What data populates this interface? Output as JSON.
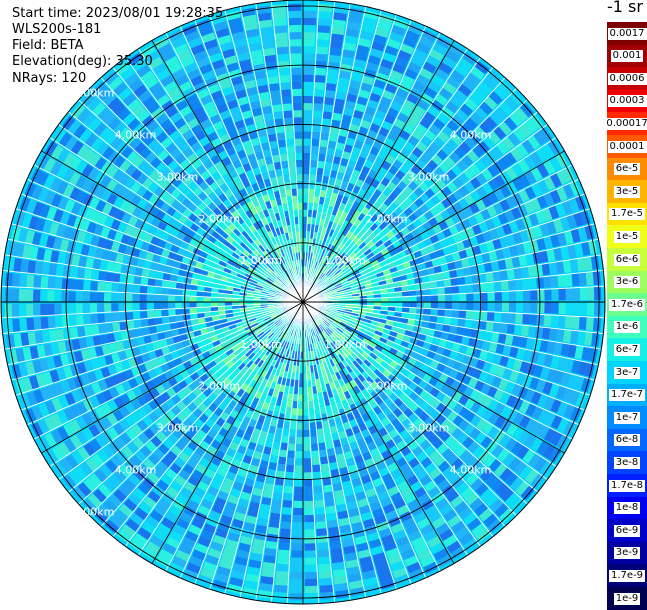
{
  "header": {
    "start_time": "Start time: 2023/08/01 19:28:35",
    "instrument": "WLS200s-181",
    "field": "Field: BETA",
    "elevation": "Elevation(deg): 35.30",
    "nrays": "NRays: 120"
  },
  "colorbar": {
    "unit": "-1 sr",
    "entries": [
      {
        "label": "0.0017",
        "color": "#7f0000"
      },
      {
        "label": "0.001",
        "color": "#a10000"
      },
      {
        "label": "0.0006",
        "color": "#c80000"
      },
      {
        "label": "0.0003",
        "color": "#ee0000"
      },
      {
        "label": "0.00017",
        "color": "#ff2a00"
      },
      {
        "label": "0.0001",
        "color": "#ff5a00"
      },
      {
        "label": "6e-5",
        "color": "#ff8c00"
      },
      {
        "label": "3e-5",
        "color": "#ffb400"
      },
      {
        "label": "1.7e-5",
        "color": "#ffe000"
      },
      {
        "label": "1e-5",
        "color": "#f0ff1a"
      },
      {
        "label": "6e-6",
        "color": "#c8ff3a"
      },
      {
        "label": "3e-6",
        "color": "#9cff5e"
      },
      {
        "label": "1.7e-6",
        "color": "#6dff8e"
      },
      {
        "label": "1e-6",
        "color": "#3effbd"
      },
      {
        "label": "6e-7",
        "color": "#14f0e6"
      },
      {
        "label": "3e-7",
        "color": "#00d4ff"
      },
      {
        "label": "1.7e-7",
        "color": "#00b0ff"
      },
      {
        "label": "1e-7",
        "color": "#008cff"
      },
      {
        "label": "6e-8",
        "color": "#0068ff"
      },
      {
        "label": "3e-8",
        "color": "#0044ff"
      },
      {
        "label": "1.7e-8",
        "color": "#0020ff"
      },
      {
        "label": "1e-8",
        "color": "#0000f0"
      },
      {
        "label": "6e-9",
        "color": "#0000c8"
      },
      {
        "label": "3e-9",
        "color": "#0000a0"
      },
      {
        "label": "1.7e-9",
        "color": "#000078"
      },
      {
        "label": "1e-9",
        "color": "#000050"
      }
    ]
  },
  "chart_data": {
    "type": "heatmap",
    "projection": "polar-ppi",
    "nrays": 120,
    "range_rings_km": [
      1,
      2,
      3,
      4,
      5
    ],
    "ring_labels": [
      "1.00km",
      "2.00km",
      "3.00km",
      "4.00km",
      "5.00km"
    ],
    "spokes_deg": [
      0,
      30,
      60,
      90,
      120,
      150,
      180,
      210,
      240,
      270,
      300,
      330
    ],
    "max_range_km": 5.1,
    "background_value": "3e-7",
    "near_field_value": "6e-7"
  }
}
